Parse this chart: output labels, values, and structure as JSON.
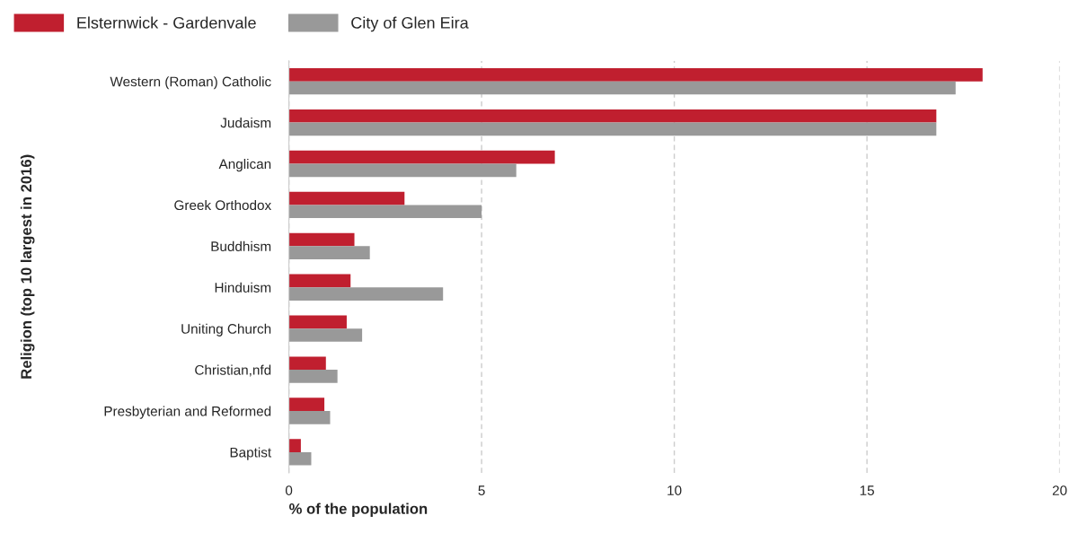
{
  "chart_data": {
    "type": "bar",
    "orientation": "horizontal",
    "xlabel": "% of the population",
    "ylabel": "Religion (top 10 largest in 2016)",
    "categories": [
      "Western (Roman) Catholic",
      "Judaism",
      "Anglican",
      "Greek Orthodox",
      "Buddhism",
      "Hinduism",
      "Uniting Church",
      "Christian,nfd",
      "Presbyterian and Reformed",
      "Baptist"
    ],
    "series": [
      {
        "name": "Elsternwick - Gardenvale",
        "color": "#c01f2f",
        "values": [
          18.0,
          16.8,
          6.9,
          3.0,
          1.7,
          1.6,
          1.5,
          0.96,
          0.92,
          0.31
        ]
      },
      {
        "name": "City of Glen Eira",
        "color": "#999999",
        "values": [
          17.3,
          16.8,
          5.9,
          5.0,
          2.1,
          4.0,
          1.9,
          1.26,
          1.07,
          0.58
        ]
      }
    ],
    "xlim": [
      0,
      20
    ],
    "xticks": [
      0,
      5,
      10,
      15,
      20
    ],
    "grid": "x",
    "legend": "top left"
  }
}
